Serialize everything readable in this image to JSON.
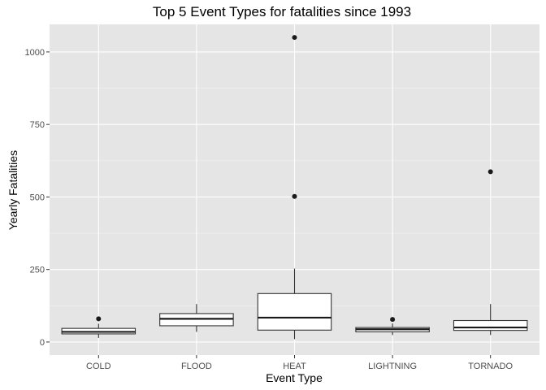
{
  "chart_data": {
    "type": "box",
    "title": "Top 5 Event Types for fatalities since 1993",
    "xlabel": "Event Type",
    "ylabel": "Yearly Fatalities",
    "ylim": [
      -45,
      1095
    ],
    "yticks": [
      0,
      250,
      500,
      750,
      1000
    ],
    "ytick_labels": [
      "0",
      "250",
      "500",
      "750",
      "1000"
    ],
    "grid": true,
    "panel_background": "#e5e5e5",
    "categories": [
      "COLD",
      "FLOOD",
      "HEAT",
      "LIGHTNING",
      "TORNADO"
    ],
    "boxes": [
      {
        "category": "COLD",
        "whisker_low": 14,
        "q1": 28,
        "median": 35,
        "q3": 47,
        "whisker_high": 63,
        "outliers": [
          80
        ]
      },
      {
        "category": "FLOOD",
        "whisker_low": 35,
        "q1": 56,
        "median": 80,
        "q3": 98,
        "whisker_high": 131,
        "outliers": []
      },
      {
        "category": "HEAT",
        "whisker_low": 10,
        "q1": 41,
        "median": 84,
        "q3": 167,
        "whisker_high": 253,
        "outliers": [
          502,
          1050
        ]
      },
      {
        "category": "LIGHTNING",
        "whisker_low": 24,
        "q1": 35,
        "median": 44,
        "q3": 50,
        "whisker_high": 64,
        "outliers": [
          78
        ]
      },
      {
        "category": "TORNADO",
        "whisker_low": 24,
        "q1": 40,
        "median": 50,
        "q3": 74,
        "whisker_high": 131,
        "outliers": [
          587
        ]
      }
    ]
  }
}
